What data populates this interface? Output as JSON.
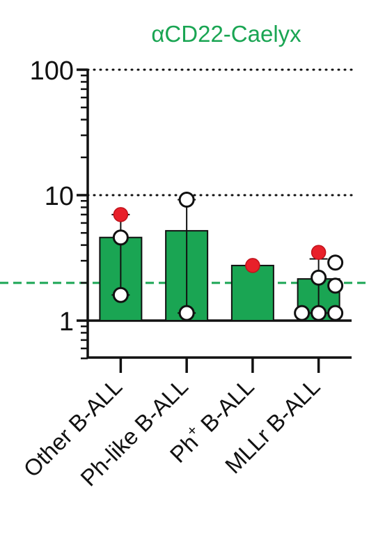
{
  "chart_data": {
    "type": "bar",
    "title": "αCD22-Caelyx",
    "xlabel": "",
    "ylabel": "",
    "y_scale": "log",
    "ylim": [
      0.5,
      100
    ],
    "y_ticks": [
      {
        "value": 1,
        "label": "1"
      },
      {
        "value": 10,
        "label": "10"
      },
      {
        "value": 100,
        "label": "100"
      }
    ],
    "categories": [
      {
        "label": "Other B-ALL",
        "superscript": ""
      },
      {
        "label": "Ph-like B-ALL",
        "superscript": ""
      },
      {
        "label": "Ph B-ALL",
        "superscript": "+"
      },
      {
        "label": "MLLr B-ALL",
        "superscript": ""
      }
    ],
    "values": [
      4.6,
      5.2,
      2.75,
      2.15
    ],
    "error_bars": [
      {
        "low": 1.6,
        "high": 7.0
      },
      {
        "low": 1.15,
        "high": 9.2
      },
      null,
      {
        "low": 1.15,
        "high": 3.1
      }
    ],
    "points": [
      [
        {
          "y": 7.0,
          "filled": true
        },
        {
          "y": 4.6,
          "filled": false
        },
        {
          "y": 1.6,
          "filled": false
        }
      ],
      [
        {
          "y": 9.2,
          "filled": false
        },
        {
          "y": 1.15,
          "filled": false
        }
      ],
      [
        {
          "y": 2.75,
          "filled": true
        }
      ],
      [
        {
          "y": 3.5,
          "filled": true
        },
        {
          "y": 2.9,
          "filled": false
        },
        {
          "y": 2.2,
          "filled": false
        },
        {
          "y": 1.9,
          "filled": false
        },
        {
          "y": 1.15,
          "filled": false
        },
        {
          "y": 1.15,
          "filled": false
        },
        {
          "y": 1.15,
          "filled": false
        }
      ]
    ],
    "reference_lines": [
      {
        "value": 100,
        "style": "dotted",
        "color": "#111111"
      },
      {
        "value": 10,
        "style": "dotted",
        "color": "#111111"
      },
      {
        "value": 2,
        "style": "dashed",
        "color": "#1aa553"
      },
      {
        "value": 1,
        "style": "solid",
        "color": "#111111"
      }
    ],
    "colors": {
      "bar": "#1aa553",
      "title": "#1aa553",
      "filled_point": "#e8202a",
      "open_point": "#ffffff",
      "axis": "#111111"
    },
    "legend": "none",
    "grid": false
  }
}
